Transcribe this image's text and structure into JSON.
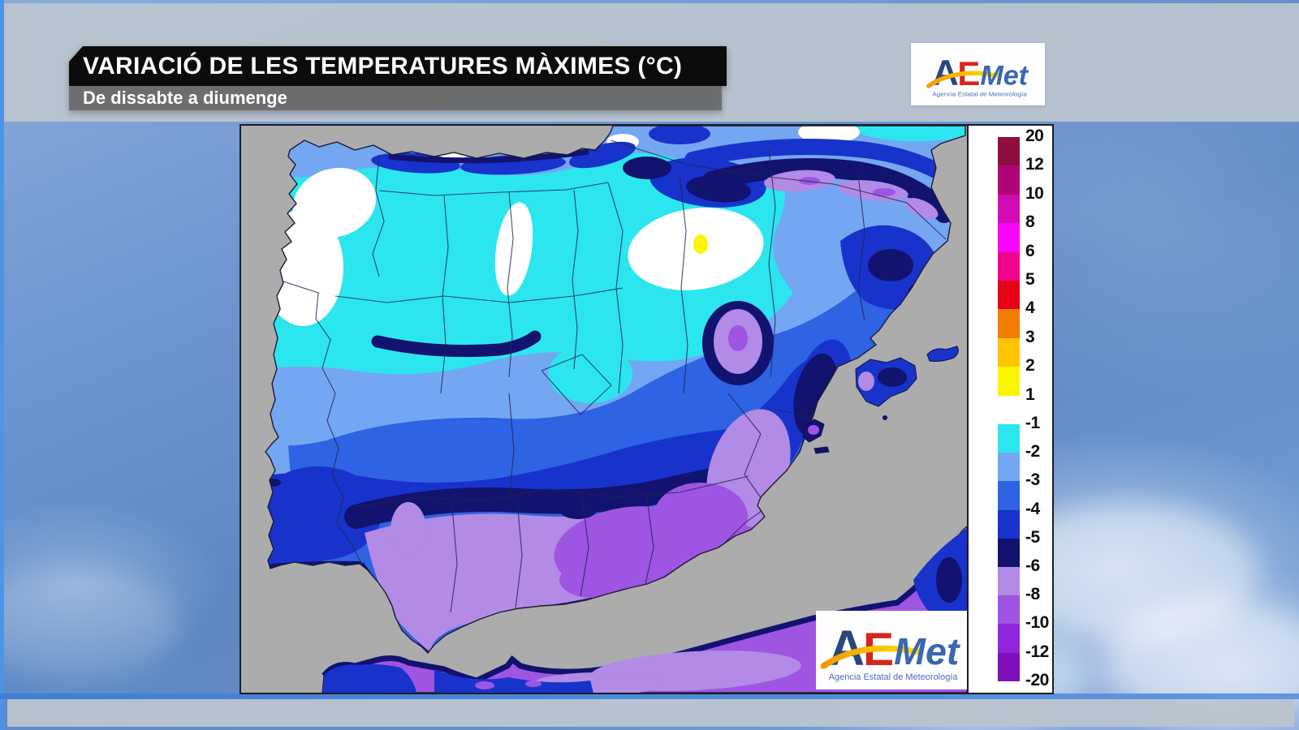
{
  "header": {
    "title": "VARIACIÓ DE LES TEMPERATURES MÀXIMES (°C)",
    "subtitle": "De dissabte a diumenge",
    "title_bar_color": "#0c0c0c",
    "subtitle_bar_color": "#6a6a6a"
  },
  "logo": {
    "a": "A",
    "e": "E",
    "met": "Met",
    "caption": "Agencia Estatal de Meteorología",
    "a_color": "#27477F",
    "e_color": "#D7251D",
    "met_color": "#3A67AE",
    "caption_color": "#4A6FB8"
  },
  "map": {
    "sea_color": "#ACACAC",
    "white_color": "#FFFFFF",
    "legend": {
      "positive": {
        "ticks": [
          "20",
          "12",
          "10",
          "8",
          "6",
          "5",
          "4",
          "3",
          "2",
          "1"
        ],
        "colors": [
          "#8E0D3E",
          "#B00577",
          "#D10CB5",
          "#FB04FB",
          "#F2038E",
          "#E60317",
          "#F07C00",
          "#FFC300",
          "#FBF600"
        ]
      },
      "negative": {
        "ticks": [
          "-1",
          "-2",
          "-3",
          "-4",
          "-5",
          "-6",
          "-8",
          "-10",
          "-12",
          "-20"
        ],
        "colors": [
          "#2BE6EF",
          "#74A7F1",
          "#2E63E3",
          "#1733CC",
          "#12126F",
          "#B18BE5",
          "#9D55E2",
          "#8F25DD",
          "#7F10B8"
        ]
      }
    }
  },
  "theme": {
    "frame_blue": "#3E7ED6",
    "band_gray": "#B9C3CD"
  }
}
